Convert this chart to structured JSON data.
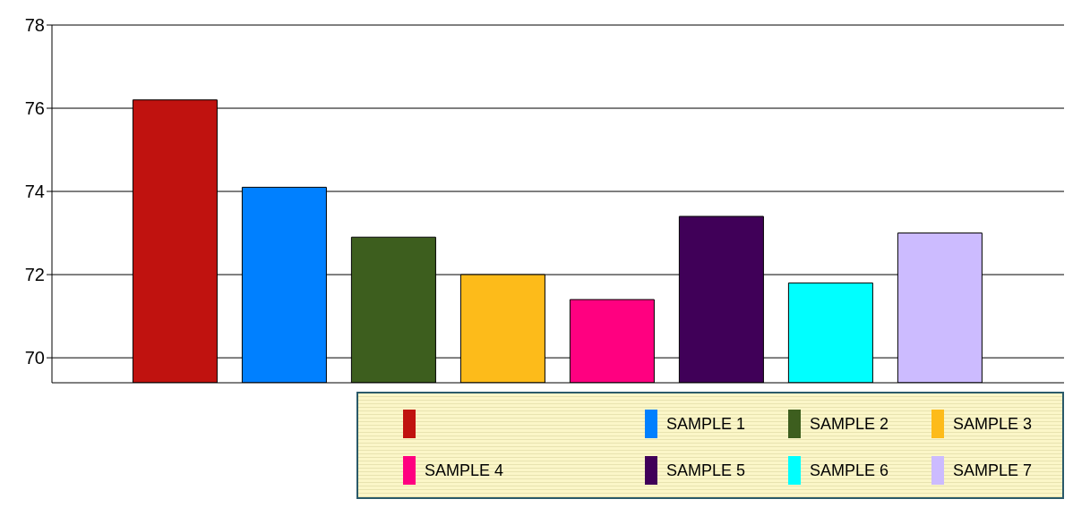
{
  "chart_data": {
    "type": "bar",
    "categories": [
      null
    ],
    "series": [
      {
        "color": "#c0120f",
        "values": [
          76.2
        ]
      },
      {
        "name": "SAMPLE 1",
        "color": "#0080ff",
        "values": [
          74.1
        ]
      },
      {
        "name": "SAMPLE 2",
        "color": "#3d5e1e",
        "values": [
          72.9
        ]
      },
      {
        "name": "SAMPLE 3",
        "color": "#fdbb1a",
        "values": [
          72.0
        ]
      },
      {
        "name": "SAMPLE 4",
        "color": "#ff0080",
        "values": [
          71.4
        ]
      },
      {
        "name": "SAMPLE 5",
        "color": "#400058",
        "values": [
          73.4
        ]
      },
      {
        "name": "SAMPLE 6",
        "color": "#00ffff",
        "values": [
          71.8
        ]
      },
      {
        "name": "SAMPLE 7",
        "color": "#ccbbff",
        "values": [
          73.0
        ]
      }
    ],
    "ylim": [
      69.4,
      78
    ],
    "yticks": [
      70,
      72,
      74,
      76,
      78
    ],
    "grid": "y",
    "legend": "bottom"
  }
}
